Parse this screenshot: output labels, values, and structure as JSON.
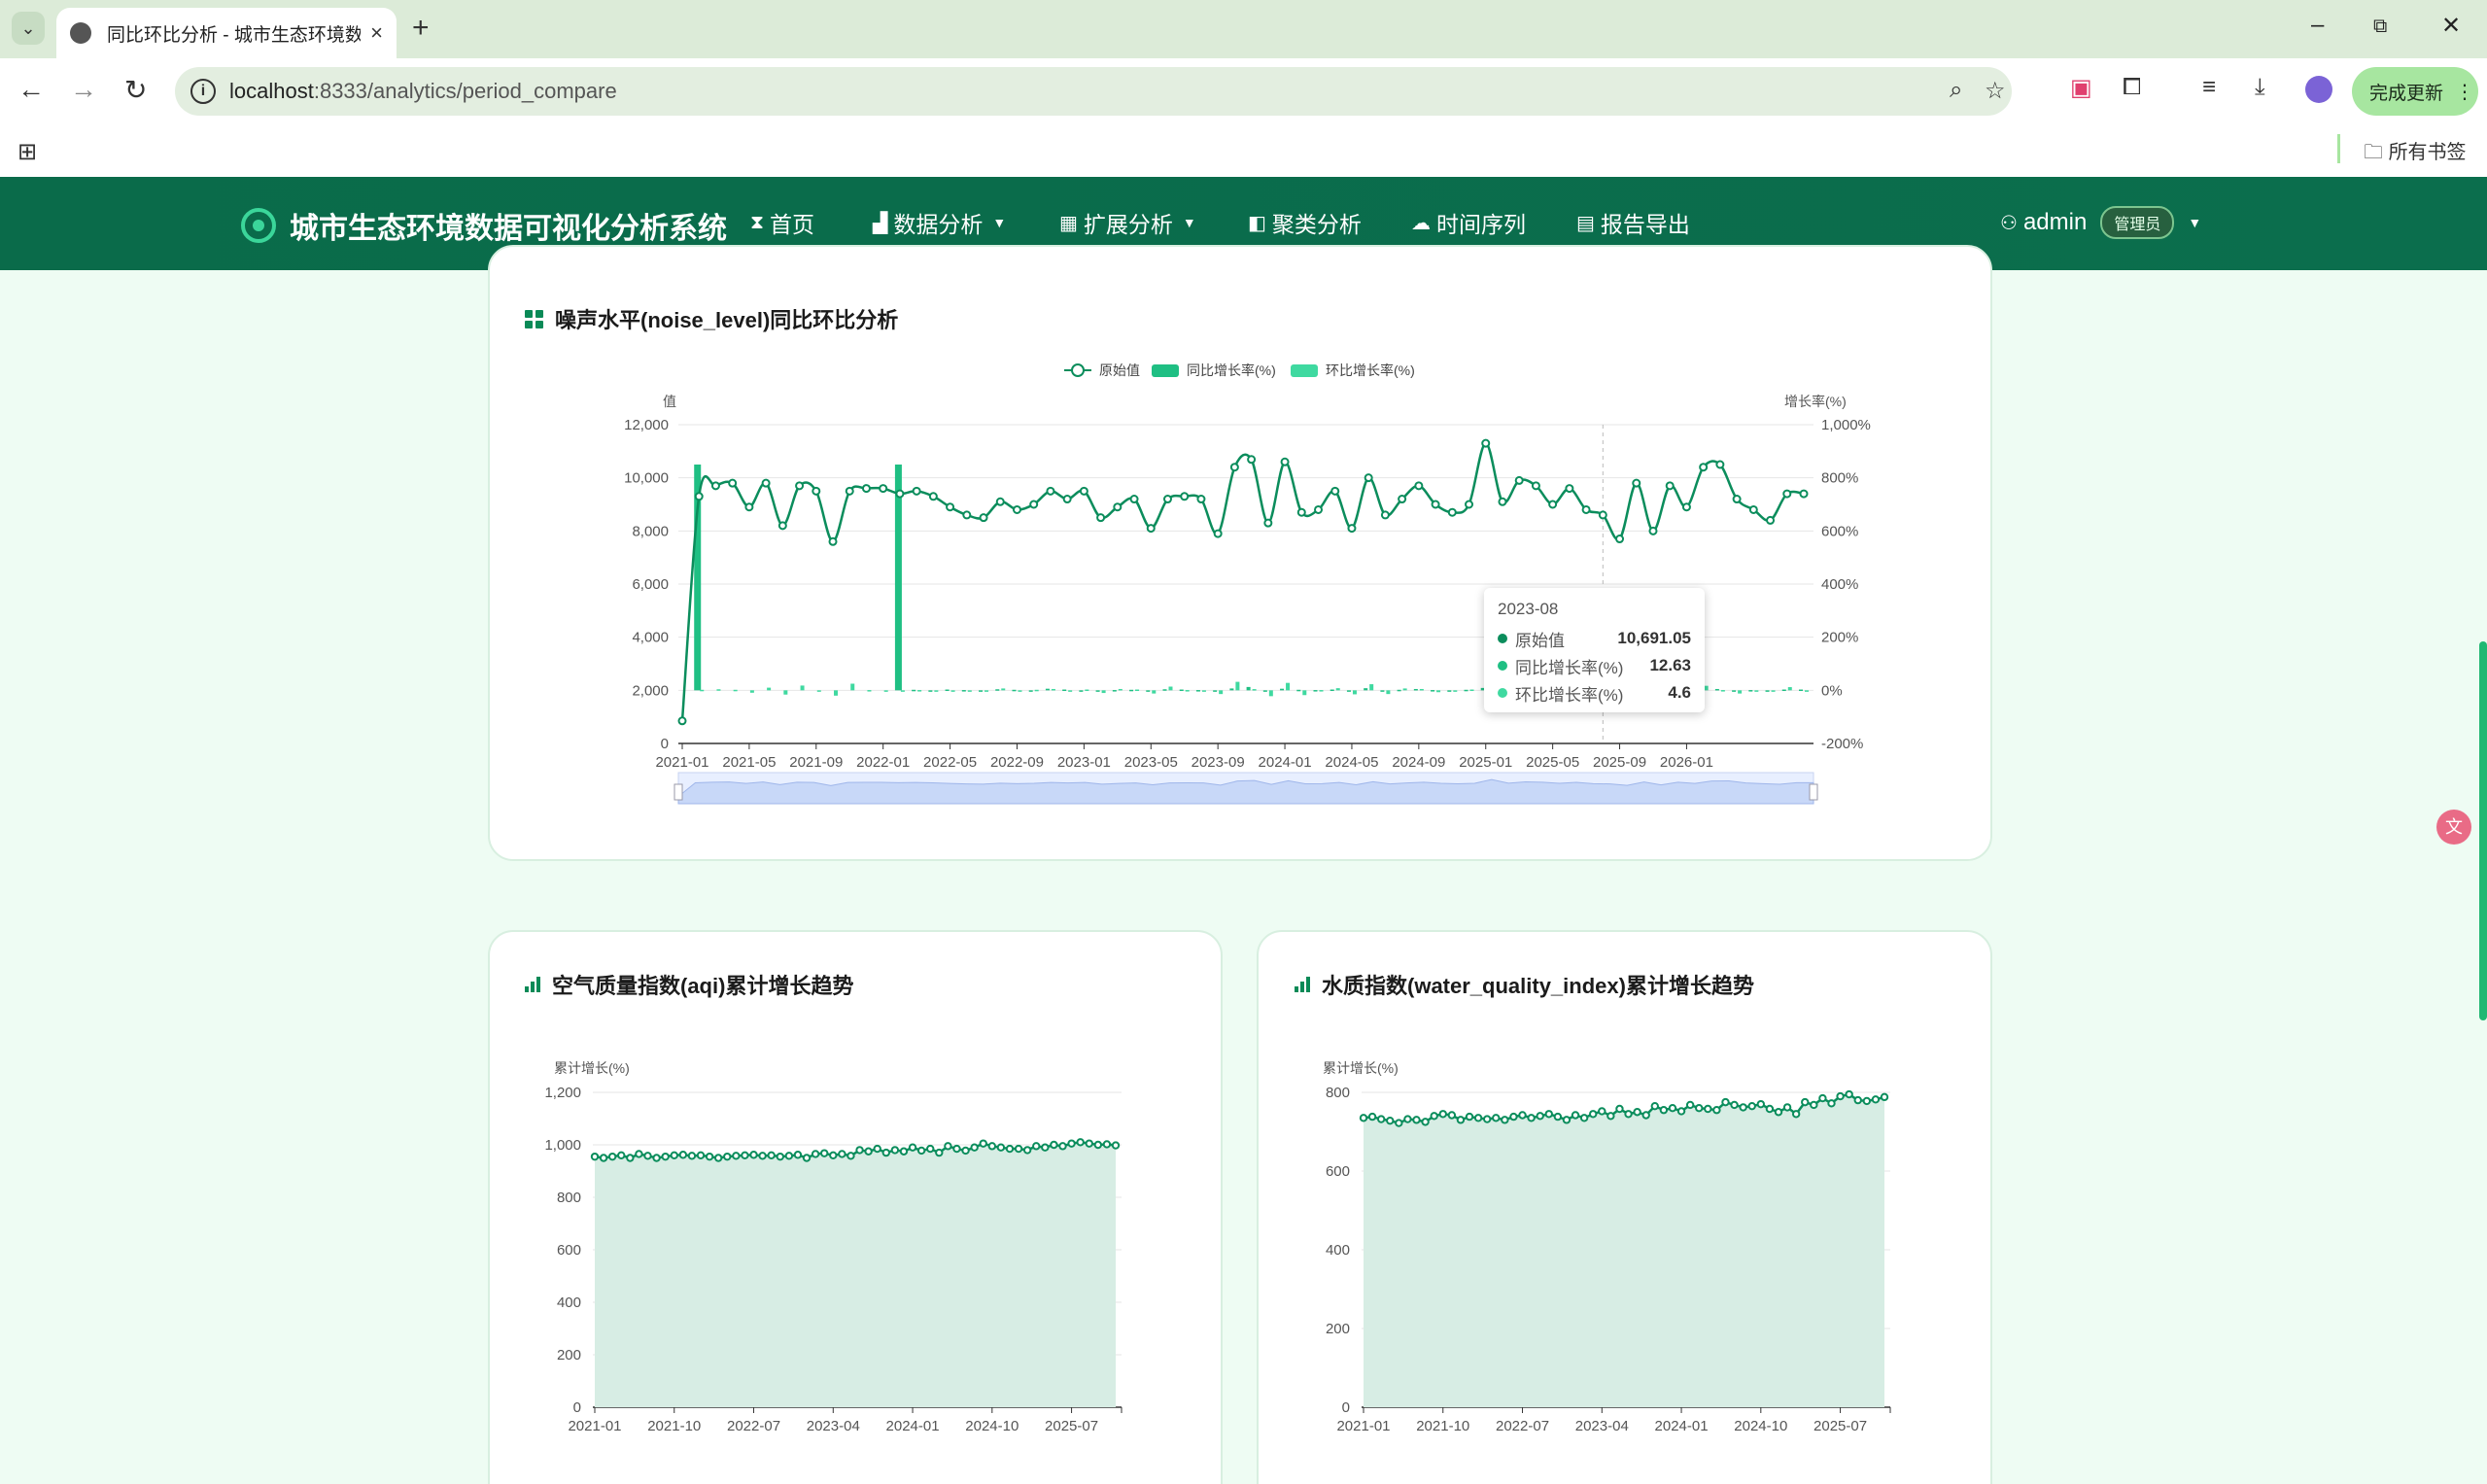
{
  "browser": {
    "tab_title": "同比环比分析 - 城市生态环境数",
    "url_host": "localhost",
    "url_path": ":8333/analytics/period_compare",
    "update_label": "完成更新",
    "bookmarks_folder": "所有书签"
  },
  "app": {
    "title": "城市生态环境数据可视化分析系统",
    "nav": {
      "home": "首页",
      "data_analysis": "数据分析",
      "ext_analysis": "扩展分析",
      "cluster": "聚类分析",
      "timeseries": "时间序列",
      "report": "报告导出"
    },
    "user": {
      "name": "admin",
      "role": "管理员"
    }
  },
  "cards": {
    "noise": {
      "title": "噪声水平(noise_level)同比环比分析"
    },
    "aqi": {
      "title": "空气质量指数(aqi)累计增长趋势"
    },
    "water": {
      "title": "水质指数(water_quality_index)累计增长趋势"
    }
  },
  "tooltip": {
    "date": "2023-08",
    "rows": [
      {
        "label": "原始值",
        "value": "10,691.05",
        "color": "#0b8d5c"
      },
      {
        "label": "同比增长率(%)",
        "value": "12.63",
        "color": "#1fbf83"
      },
      {
        "label": "环比增长率(%)",
        "value": "4.6",
        "color": "#3fd9a0"
      }
    ]
  },
  "chart_data": [
    {
      "type": "line",
      "title": "噪声水平(noise_level)同比环比分析",
      "legend": [
        "原始值",
        "同比增长率(%)",
        "环比增长率(%)"
      ],
      "y_left": {
        "label": "值",
        "ticks": [
          "0",
          "2,000",
          "4,000",
          "6,000",
          "8,000",
          "10,000",
          "12,000"
        ],
        "range": [
          0,
          12000
        ]
      },
      "y_right": {
        "label": "增长率(%)",
        "ticks": [
          "-200%",
          "0%",
          "200%",
          "400%",
          "600%",
          "800%",
          "1,000%"
        ],
        "range": [
          -200,
          1000
        ]
      },
      "x_ticks": [
        "2021-01",
        "2021-05",
        "2021-09",
        "2022-01",
        "2022-05",
        "2022-09",
        "2023-01",
        "2023-05",
        "2023-09",
        "2024-01",
        "2024-05",
        "2024-09",
        "2025-01",
        "2025-05",
        "2025-09",
        "2026-01"
      ],
      "series": [
        {
          "name": "原始值",
          "values": [
            850,
            9300,
            9700,
            9800,
            8900,
            9800,
            8200,
            9700,
            9500,
            7600,
            9500,
            9600,
            9600,
            9400,
            9500,
            9300,
            8900,
            8600,
            8500,
            9100,
            8800,
            9000,
            9500,
            9200,
            9500,
            8500,
            8900,
            9200,
            8100,
            9200,
            9300,
            9200,
            7900,
            10400,
            10691,
            8300,
            10600,
            8700,
            8800,
            9500,
            8100,
            10000,
            8600,
            9200,
            9700,
            9000,
            8700,
            9000,
            11300,
            9100,
            9900,
            9700,
            9000,
            9600,
            8800,
            8600,
            7700,
            9800,
            8000,
            9700,
            8900,
            10400,
            10500,
            9200,
            8800,
            8400,
            9400,
            9400
          ]
        },
        {
          "name": "同比增长率(%)",
          "values": [
            null,
            850,
            null,
            null,
            null,
            null,
            null,
            null,
            null,
            null,
            null,
            null,
            null,
            850,
            2,
            -1,
            3,
            1,
            -2,
            4,
            2,
            -3,
            6,
            3,
            0,
            -2,
            1,
            2,
            -1,
            4,
            3,
            1,
            -4,
            7,
            12.63,
            -5,
            6,
            2,
            1,
            3,
            -4,
            8,
            -2,
            2,
            5,
            1,
            -1,
            2,
            9,
            -3,
            4,
            2,
            -2,
            3,
            -1,
            -2,
            -5,
            5,
            -3,
            4,
            1,
            6,
            5,
            -1,
            1,
            -2,
            3,
            3
          ]
        },
        {
          "name": "环比增长率(%)",
          "values": [
            null,
            2,
            4,
            2,
            -9,
            10,
            -16,
            18,
            -2,
            -20,
            25,
            1,
            0,
            -2,
            1,
            -2,
            -4,
            -3,
            -1,
            7,
            -3,
            2,
            5,
            -3,
            3,
            -10,
            5,
            3,
            -12,
            14,
            1,
            -1,
            -14,
            32,
            4.6,
            -22,
            28,
            -18,
            1,
            8,
            -15,
            23,
            -14,
            7,
            5,
            -7,
            -3,
            3,
            26,
            -19,
            9,
            -2,
            -7,
            7,
            -8,
            -2,
            -10,
            27,
            -18,
            21,
            -8,
            17,
            1,
            -12,
            -4,
            -5,
            12,
            0
          ]
        }
      ]
    },
    {
      "type": "area",
      "title": "空气质量指数(aqi)累计增长趋势",
      "ylabel": "累计增长(%)",
      "ylim": [
        0,
        1200
      ],
      "y_ticks": [
        "0",
        "200",
        "400",
        "600",
        "800",
        "1,000",
        "1,200"
      ],
      "x_ticks": [
        "2021-01",
        "2021-10",
        "2022-07",
        "2023-04",
        "2024-01",
        "2024-10",
        "2025-07"
      ],
      "series": [
        {
          "name": "累计增长(%)",
          "values": [
            955,
            950,
            955,
            960,
            950,
            965,
            958,
            950,
            955,
            960,
            962,
            958,
            960,
            955,
            950,
            955,
            958,
            960,
            962,
            958,
            960,
            955,
            958,
            962,
            950,
            965,
            968,
            960,
            965,
            958,
            980,
            975,
            985,
            970,
            980,
            975,
            990,
            978,
            985,
            970,
            995,
            985,
            978,
            990,
            1005,
            995,
            990,
            985,
            985,
            980,
            995,
            990,
            1000,
            995,
            1005,
            1010,
            1005,
            1000,
            1002,
            998
          ]
        }
      ]
    },
    {
      "type": "area",
      "title": "水质指数(water_quality_index)累计增长趋势",
      "ylabel": "累计增长(%)",
      "ylim": [
        0,
        800
      ],
      "y_ticks": [
        "0",
        "200",
        "400",
        "600",
        "800"
      ],
      "x_ticks": [
        "2021-01",
        "2021-10",
        "2022-07",
        "2023-04",
        "2024-01",
        "2024-10",
        "2025-07"
      ],
      "series": [
        {
          "name": "累计增长(%)",
          "values": [
            735,
            738,
            732,
            728,
            722,
            732,
            730,
            725,
            740,
            745,
            742,
            730,
            738,
            735,
            732,
            735,
            730,
            738,
            742,
            735,
            740,
            745,
            738,
            730,
            742,
            735,
            745,
            752,
            740,
            758,
            745,
            750,
            742,
            765,
            755,
            760,
            752,
            768,
            760,
            758,
            755,
            775,
            768,
            762,
            765,
            770,
            758,
            750,
            762,
            745,
            775,
            768,
            785,
            772,
            790,
            795,
            780,
            778,
            782,
            788
          ]
        }
      ]
    }
  ]
}
